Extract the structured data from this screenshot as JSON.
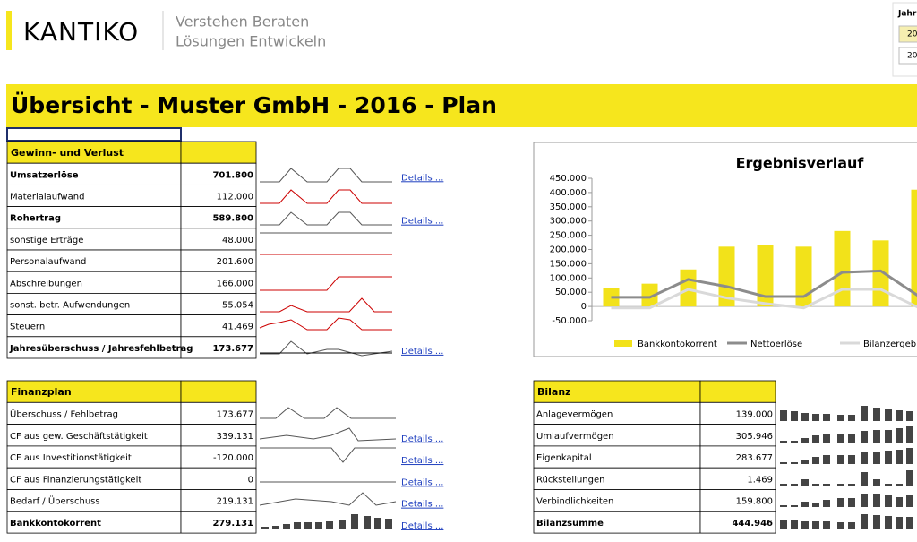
{
  "header": {
    "brand": "KANTIKO",
    "tagline": [
      "Verstehen Beraten",
      "Lösungen Entwickeln"
    ],
    "year_panel": {
      "label": "Jahr",
      "buttons": [
        "20",
        "20"
      ]
    }
  },
  "title": "Übersicht - Muster GmbH - 2016 - Plan",
  "details_link": "Details ...",
  "guv": {
    "title": "Gewinn- und Verlust",
    "rows": [
      {
        "label": "Umsatzerlöse",
        "value": "701.800",
        "bold": true,
        "details": true
      },
      {
        "label": "Materialaufwand",
        "value": "112.000",
        "bold": false,
        "details": false
      },
      {
        "label": "Rohertrag",
        "value": "589.800",
        "bold": true,
        "details": true
      },
      {
        "label": "sonstige Erträge",
        "value": "48.000",
        "bold": false,
        "details": false
      },
      {
        "label": "Personalaufwand",
        "value": "201.600",
        "bold": false,
        "details": false
      },
      {
        "label": "Abschreibungen",
        "value": "166.000",
        "bold": false,
        "details": false
      },
      {
        "label": "sonst. betr. Aufwendungen",
        "value": "55.054",
        "bold": false,
        "details": false
      },
      {
        "label": "Steuern",
        "value": "41.469",
        "bold": false,
        "details": false
      },
      {
        "label": "Jahresüberschuss / Jahresfehlbetrag",
        "value": "173.677",
        "bold": true,
        "details": true
      }
    ]
  },
  "finanzplan": {
    "title": "Finanzplan",
    "rows": [
      {
        "label": "Überschuss / Fehlbetrag",
        "value": "173.677",
        "bold": false,
        "details": false
      },
      {
        "label": "CF aus gew. Geschäftstätigkeit",
        "value": "339.131",
        "bold": false,
        "details": true
      },
      {
        "label": "CF aus Investitionstätigkeit",
        "value": "-120.000",
        "bold": false,
        "details": true
      },
      {
        "label": "CF aus Finanzierungstätigkeit",
        "value": "0",
        "bold": false,
        "details": true
      },
      {
        "label": "Bedarf / Überschuss",
        "value": "219.131",
        "bold": false,
        "details": true
      },
      {
        "label": "Bankkontokorrent",
        "value": "279.131",
        "bold": true,
        "details": true
      }
    ]
  },
  "bilanz": {
    "title": "Bilanz",
    "rows": [
      {
        "label": "Anlagevermögen",
        "value": "139.000",
        "bold": false
      },
      {
        "label": "Umlaufvermögen",
        "value": "305.946",
        "bold": false
      },
      {
        "label": "Eigenkapital",
        "value": "283.677",
        "bold": false
      },
      {
        "label": "Rückstellungen",
        "value": "1.469",
        "bold": false
      },
      {
        "label": "Verbindlichkeiten",
        "value": "159.800",
        "bold": false
      },
      {
        "label": "Bilanzsumme",
        "value": "444.946",
        "bold": true
      }
    ]
  },
  "chart_data": {
    "type": "bar",
    "title": "Ergebnisverlauf",
    "categories": [
      null,
      null,
      null,
      null,
      null,
      null,
      null,
      null,
      null
    ],
    "ylim": [
      -50000,
      450000
    ],
    "yticks": [
      {
        "value": -50000,
        "label": "-50.000"
      },
      0,
      {
        "value": 50000,
        "label": "50.000"
      },
      {
        "value": 100000,
        "label": "100.000"
      },
      {
        "value": 150000,
        "label": "150.000"
      },
      {
        "value": 200000,
        "label": "200.000"
      },
      {
        "value": 250000,
        "label": "250.000"
      },
      {
        "value": 300000,
        "label": "300.000"
      },
      {
        "value": 350000,
        "label": "350.000"
      },
      {
        "value": 400000,
        "label": "400.000"
      },
      {
        "value": 450000,
        "label": "450.000"
      }
    ],
    "series": [
      {
        "name": "Bankkontokorrent",
        "kind": "bar",
        "color": "#f2e21a",
        "values": [
          65000,
          80000,
          130000,
          210000,
          215000,
          210000,
          265000,
          232000,
          410000
        ]
      },
      {
        "name": "Nettoerlöse",
        "kind": "line",
        "color": "#8c8c8c",
        "values": [
          32000,
          32000,
          95000,
          70000,
          35000,
          35000,
          120000,
          125000,
          35000
        ]
      },
      {
        "name": "Bilanzergebnis",
        "kind": "line",
        "color": "#d9d9d9",
        "values": [
          -5000,
          -5000,
          60000,
          30000,
          10000,
          -5000,
          60000,
          60000,
          -5000
        ]
      }
    ]
  }
}
